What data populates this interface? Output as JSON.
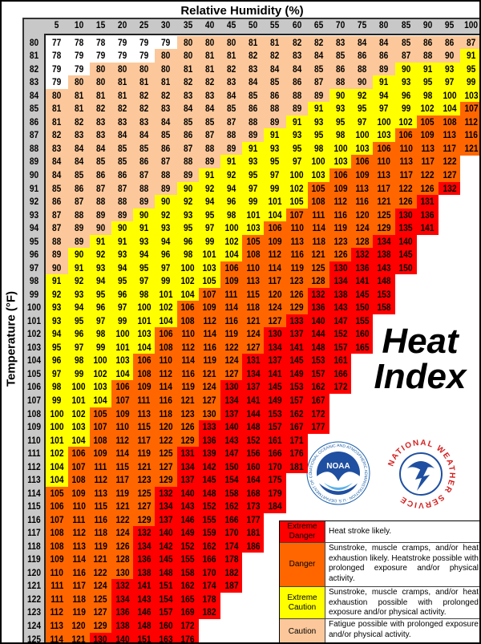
{
  "chart_data": {
    "type": "table",
    "title": "Heat Index",
    "xlabel": "Relative Humidity (%)",
    "ylabel": "Temperature (°F)",
    "columns": [
      5,
      10,
      15,
      20,
      25,
      30,
      35,
      40,
      45,
      50,
      55,
      60,
      65,
      70,
      75,
      80,
      85,
      90,
      95,
      100
    ],
    "level_colors": {
      "W": "#ffffff",
      "C": "#fcc89b",
      "E": "#ffff00",
      "D": "#ff6600",
      "X": "#ff0000"
    },
    "rows": [
      {
        "temp": 80,
        "values": [
          77,
          78,
          78,
          79,
          79,
          79,
          80,
          80,
          80,
          81,
          81,
          82,
          82,
          83,
          84,
          84,
          85,
          86,
          86,
          87
        ],
        "levels": "WWWWWWCCCCCCCCCCCCCC"
      },
      {
        "temp": 81,
        "values": [
          78,
          79,
          79,
          79,
          79,
          80,
          80,
          81,
          81,
          82,
          82,
          83,
          84,
          85,
          86,
          86,
          87,
          88,
          90,
          91
        ],
        "levels": "WWWWWCCCCCCCCCCCCCCE"
      },
      {
        "temp": 82,
        "values": [
          79,
          79,
          80,
          80,
          80,
          80,
          81,
          81,
          82,
          83,
          84,
          84,
          85,
          86,
          88,
          89,
          90,
          91,
          93,
          95
        ],
        "levels": "WWCCCCCCCCCCCCCCEEEE"
      },
      {
        "temp": 83,
        "values": [
          79,
          80,
          80,
          81,
          81,
          81,
          82,
          82,
          83,
          84,
          85,
          86,
          87,
          88,
          90,
          91,
          93,
          95,
          97,
          99
        ],
        "levels": "WCCCCCCCCCCCCCCEEEEE"
      },
      {
        "temp": 84,
        "values": [
          80,
          81,
          81,
          81,
          82,
          82,
          83,
          83,
          84,
          85,
          86,
          88,
          89,
          90,
          92,
          94,
          96,
          98,
          100,
          103
        ],
        "levels": "CCCCCCCCCCCCCEEEEEEE"
      },
      {
        "temp": 85,
        "values": [
          81,
          81,
          82,
          82,
          82,
          83,
          84,
          84,
          85,
          86,
          88,
          89,
          91,
          93,
          95,
          97,
          99,
          102,
          104,
          107
        ],
        "levels": "CCCCCCCCCCCCEEEEEEED"
      },
      {
        "temp": 86,
        "values": [
          81,
          82,
          83,
          83,
          83,
          84,
          85,
          85,
          87,
          88,
          89,
          91,
          93,
          95,
          97,
          100,
          102,
          105,
          108,
          112
        ],
        "levels": "CCCCCCCCCCCEEEEEEDDD"
      },
      {
        "temp": 87,
        "values": [
          82,
          83,
          83,
          84,
          84,
          85,
          86,
          87,
          88,
          89,
          91,
          93,
          95,
          98,
          100,
          103,
          106,
          109,
          113,
          116
        ],
        "levels": "CCCCCCCCCCEEEEEEDDDD"
      },
      {
        "temp": 88,
        "values": [
          83,
          84,
          84,
          85,
          85,
          86,
          87,
          88,
          89,
          91,
          93,
          95,
          98,
          100,
          103,
          106,
          110,
          113,
          117,
          121
        ],
        "levels": "CCCCCCCCCEEEEEEDDDDD"
      },
      {
        "temp": 89,
        "values": [
          84,
          84,
          85,
          85,
          86,
          87,
          88,
          89,
          91,
          93,
          95,
          97,
          100,
          103,
          106,
          110,
          113,
          117,
          122
        ],
        "levels": "CCCCCCCCEEEEEEDDDDD"
      },
      {
        "temp": 90,
        "values": [
          84,
          85,
          86,
          86,
          87,
          88,
          89,
          91,
          92,
          95,
          97,
          100,
          103,
          106,
          109,
          113,
          117,
          122,
          127
        ],
        "levels": "CCCCCCCEEEEEEDDDDDD"
      },
      {
        "temp": 91,
        "values": [
          85,
          86,
          87,
          87,
          88,
          89,
          90,
          92,
          94,
          97,
          99,
          102,
          105,
          109,
          113,
          117,
          122,
          126,
          132
        ],
        "levels": "CCCCCCEEEEEEDDDDDDX"
      },
      {
        "temp": 92,
        "values": [
          86,
          87,
          88,
          88,
          89,
          90,
          92,
          94,
          96,
          99,
          101,
          105,
          108,
          112,
          116,
          121,
          126,
          131
        ],
        "levels": "CCCCCEEEEEEEDDDDDX"
      },
      {
        "temp": 93,
        "values": [
          87,
          88,
          89,
          89,
          90,
          92,
          93,
          95,
          98,
          101,
          104,
          107,
          111,
          116,
          120,
          125,
          130,
          136
        ],
        "levels": "CCCCEEEEEEEDDDDDXX"
      },
      {
        "temp": 94,
        "values": [
          87,
          89,
          90,
          90,
          91,
          93,
          95,
          97,
          100,
          103,
          106,
          110,
          114,
          119,
          124,
          129,
          135,
          141
        ],
        "levels": "CCCEEEEEEEDDDDDDXX"
      },
      {
        "temp": 95,
        "values": [
          88,
          89,
          91,
          91,
          93,
          94,
          96,
          99,
          102,
          105,
          109,
          113,
          118,
          123,
          128,
          134,
          140
        ],
        "levels": "CCEEEEEEEDDDDDDXX"
      },
      {
        "temp": 96,
        "values": [
          89,
          90,
          92,
          93,
          94,
          96,
          98,
          101,
          104,
          108,
          112,
          116,
          121,
          126,
          132,
          138,
          145
        ],
        "levels": "CEEEEEEEEDDDDDXXX"
      },
      {
        "temp": 97,
        "values": [
          90,
          91,
          93,
          94,
          95,
          97,
          100,
          103,
          106,
          110,
          114,
          119,
          125,
          130,
          136,
          143,
          150
        ],
        "levels": "CEEEEEEEDDDDDXXXX"
      },
      {
        "temp": 98,
        "values": [
          91,
          92,
          94,
          95,
          97,
          99,
          102,
          105,
          109,
          113,
          117,
          123,
          128,
          134,
          141,
          148
        ],
        "levels": "EEEEEEEEDDDDDXXX"
      },
      {
        "temp": 99,
        "values": [
          92,
          93,
          95,
          96,
          98,
          101,
          104,
          107,
          111,
          115,
          120,
          126,
          132,
          138,
          145,
          153
        ],
        "levels": "EEEEEEEDDDDDXXXX"
      },
      {
        "temp": 100,
        "values": [
          93,
          94,
          96,
          97,
          100,
          102,
          106,
          109,
          114,
          118,
          124,
          129,
          136,
          143,
          150,
          158
        ],
        "levels": "EEEEEEDDDDDDXXXX"
      },
      {
        "temp": 101,
        "values": [
          93,
          95,
          97,
          99,
          101,
          104,
          108,
          112,
          116,
          121,
          127,
          133,
          140,
          147,
          155
        ],
        "levels": "EEEEEEDDDDDXXXX"
      },
      {
        "temp": 102,
        "values": [
          94,
          96,
          98,
          100,
          103,
          106,
          110,
          114,
          119,
          124,
          130,
          137,
          144,
          152,
          160
        ],
        "levels": "EEEEEDDDDDXXXXX"
      },
      {
        "temp": 103,
        "values": [
          95,
          97,
          99,
          101,
          104,
          108,
          112,
          116,
          122,
          127,
          134,
          141,
          148,
          157,
          165
        ],
        "levels": "EEEEEDDDDDXXXXX"
      },
      {
        "temp": 104,
        "values": [
          96,
          98,
          100,
          103,
          106,
          110,
          114,
          119,
          124,
          131,
          137,
          145,
          153,
          161
        ],
        "levels": "EEEEDDDDDXXXXX"
      },
      {
        "temp": 105,
        "values": [
          97,
          99,
          102,
          104,
          108,
          112,
          116,
          121,
          127,
          134,
          141,
          149,
          157,
          166
        ],
        "levels": "EEEEDDDDDXXXXX"
      },
      {
        "temp": 106,
        "values": [
          98,
          100,
          103,
          106,
          109,
          114,
          119,
          124,
          130,
          137,
          145,
          153,
          162,
          172
        ],
        "levels": "EEEDDDDDXXXXXX"
      },
      {
        "temp": 107,
        "values": [
          99,
          101,
          104,
          107,
          111,
          116,
          121,
          127,
          134,
          141,
          149,
          157,
          167
        ],
        "levels": "EEEDDDDDXXXXX"
      },
      {
        "temp": 108,
        "values": [
          100,
          102,
          105,
          109,
          113,
          118,
          123,
          130,
          137,
          144,
          153,
          162,
          172
        ],
        "levels": "EEDDDDDDXXXXX"
      },
      {
        "temp": 109,
        "values": [
          100,
          103,
          107,
          110,
          115,
          120,
          126,
          133,
          140,
          148,
          157,
          167,
          177
        ],
        "levels": "EEDDDDDXXXXXX"
      },
      {
        "temp": 110,
        "values": [
          101,
          104,
          108,
          112,
          117,
          122,
          129,
          136,
          143,
          152,
          161,
          171
        ],
        "levels": "EEDDDDDXXXXX"
      },
      {
        "temp": 111,
        "values": [
          102,
          106,
          109,
          114,
          119,
          125,
          131,
          139,
          147,
          156,
          166,
          176
        ],
        "levels": "EDDDDDXXXXXX"
      },
      {
        "temp": 112,
        "values": [
          104,
          107,
          111,
          115,
          121,
          127,
          134,
          142,
          150,
          160,
          170,
          181
        ],
        "levels": "EDDDDDXXXXXX"
      },
      {
        "temp": 113,
        "values": [
          104,
          108,
          112,
          117,
          123,
          129,
          137,
          145,
          154,
          164,
          175
        ],
        "levels": "EDDDDDXXXXX"
      },
      {
        "temp": 114,
        "values": [
          105,
          109,
          113,
          119,
          125,
          132,
          140,
          148,
          158,
          168,
          179
        ],
        "levels": "DDDDDXXXXXX"
      },
      {
        "temp": 115,
        "values": [
          106,
          110,
          115,
          121,
          127,
          134,
          143,
          152,
          162,
          173,
          184
        ],
        "levels": "DDDDDXXXXXX"
      },
      {
        "temp": 116,
        "values": [
          107,
          111,
          116,
          122,
          129,
          137,
          146,
          155,
          166,
          177
        ],
        "levels": "DDDDDXXXXX"
      },
      {
        "temp": 117,
        "values": [
          108,
          112,
          118,
          124,
          132,
          140,
          149,
          159,
          170,
          181
        ],
        "levels": "DDDDXXXXXX"
      },
      {
        "temp": 118,
        "values": [
          108,
          113,
          119,
          126,
          134,
          142,
          152,
          162,
          174,
          186
        ],
        "levels": "DDDDXXXXXX"
      },
      {
        "temp": 119,
        "values": [
          109,
          114,
          121,
          128,
          136,
          145,
          155,
          166,
          178
        ],
        "levels": "DDDDXXXXX"
      },
      {
        "temp": 120,
        "values": [
          110,
          116,
          122,
          130,
          138,
          148,
          158,
          170,
          182
        ],
        "levels": "DDDDXXXXX"
      },
      {
        "temp": 121,
        "values": [
          111,
          117,
          124,
          132,
          141,
          151,
          162,
          174,
          187
        ],
        "levels": "DDDXXXXXX"
      },
      {
        "temp": 122,
        "values": [
          111,
          118,
          125,
          134,
          143,
          154,
          165,
          178
        ],
        "levels": "DDDXXXXX"
      },
      {
        "temp": 123,
        "values": [
          112,
          119,
          127,
          136,
          146,
          157,
          169,
          182
        ],
        "levels": "DDDXXXXX"
      },
      {
        "temp": 124,
        "values": [
          113,
          120,
          129,
          138,
          148,
          160,
          172
        ],
        "levels": "DDDXXXX"
      },
      {
        "temp": 125,
        "values": [
          114,
          121,
          130,
          140,
          151,
          163,
          176
        ],
        "levels": "DDXXXXX"
      }
    ]
  },
  "heat_title": {
    "line1": "Heat",
    "line2": "Index"
  },
  "legend": [
    {
      "name": "Extreme Danger",
      "color": "#ff0000",
      "text": "Heat stroke likely."
    },
    {
      "name": "Danger",
      "color": "#ff6600",
      "text": "Sunstroke, muscle cramps, and/or heat exhaustion likely. Heatstroke possible with prolonged exposure and/or physical activity."
    },
    {
      "name": "Extreme Caution",
      "color": "#ffff00",
      "text": "Sunstroke, muscle cramps, and/or heat exhaustion possible with prolonged exposure and/or physical activity."
    },
    {
      "name": "Caution",
      "color": "#fcc89b",
      "text": "Fatigue possible with prolonged exposure and/or physical activity."
    }
  ],
  "logos": {
    "noaa": "NOAA",
    "noaa_ring": "NATIONAL OCEANIC AND ATMOSPHERIC ADMINISTRATION · U.S. DEPARTMENT OF COMMERCE",
    "nws": "NATIONAL WEATHER SERVICE"
  }
}
